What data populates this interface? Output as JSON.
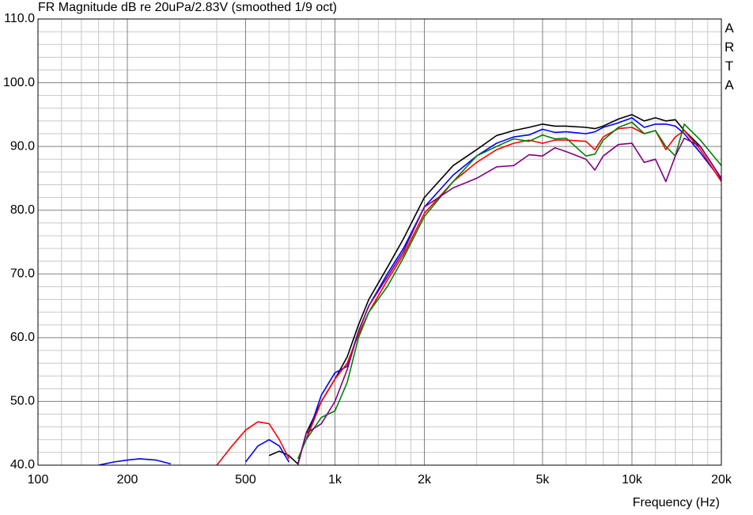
{
  "chart_data": {
    "type": "line",
    "title": "FR Magnitude dB re 20uPa/2.83V (smoothed 1/9 oct)",
    "x_label": "Frequency (Hz)",
    "watermark": "ARTA",
    "xscale": "log",
    "grid": true,
    "xlim": [
      100,
      20000
    ],
    "xticks": [
      100,
      200,
      500,
      {
        "value": 1000,
        "label": "1k"
      },
      {
        "value": 2000,
        "label": "2k"
      },
      {
        "value": 5000,
        "label": "5k"
      },
      {
        "value": 10000,
        "label": "10k"
      },
      {
        "value": 20000,
        "label": "20k"
      }
    ],
    "xminorticks": [
      120,
      140,
      160,
      180,
      300,
      400,
      600,
      700,
      800,
      900,
      1200,
      1400,
      1600,
      1800,
      3000,
      4000,
      6000,
      7000,
      8000,
      9000,
      12000,
      14000,
      16000,
      18000
    ],
    "ylim": [
      40,
      110
    ],
    "yticks": [
      {
        "value": 40,
        "label": "40.0"
      },
      {
        "value": 50,
        "label": "50.0"
      },
      {
        "value": 60,
        "label": "60.0"
      },
      {
        "value": 70,
        "label": "70.0"
      },
      {
        "value": 80,
        "label": "80.0"
      },
      {
        "value": 90,
        "label": "90.0"
      },
      {
        "value": 100,
        "label": "100.0"
      },
      {
        "value": 110,
        "label": "110.0"
      }
    ],
    "yminorticks": [
      42,
      44,
      46,
      48,
      52,
      54,
      56,
      58,
      62,
      64,
      66,
      68,
      72,
      74,
      76,
      78,
      82,
      84,
      86,
      88,
      92,
      94,
      96,
      98,
      102,
      104,
      106,
      108
    ],
    "x": [
      150,
      160,
      180,
      200,
      220,
      250,
      280,
      300,
      400,
      450,
      500,
      550,
      600,
      650,
      700,
      750,
      800,
      900,
      1000,
      1100,
      1200,
      1300,
      1500,
      1700,
      2000,
      2500,
      3000,
      3500,
      4000,
      4500,
      5000,
      5500,
      6000,
      7000,
      7500,
      8000,
      9000,
      10000,
      11000,
      12000,
      13000,
      14000,
      15000,
      17000,
      20000
    ],
    "series": [
      {
        "color": "#000000",
        "values": [
          null,
          null,
          null,
          null,
          null,
          null,
          null,
          null,
          null,
          null,
          null,
          null,
          41.5,
          42.2,
          41.5,
          40.2,
          45,
          50,
          53.5,
          57,
          62,
          66,
          71,
          75.5,
          82,
          87,
          89.5,
          91.7,
          92.5,
          93,
          93.5,
          93.2,
          93.2,
          93,
          92.8,
          93.2,
          94.3,
          95,
          94,
          94.5,
          94,
          94.2,
          92.5,
          90,
          85
        ]
      },
      {
        "color": "#0000ff",
        "values": [
          null,
          40,
          40.5,
          40.8,
          41,
          40.8,
          40.2,
          null,
          null,
          null,
          40.5,
          43,
          44,
          43,
          40.5,
          null,
          44,
          51,
          54.5,
          55.5,
          61,
          65,
          70,
          74,
          80.5,
          85.5,
          88.5,
          90.5,
          91.5,
          91.8,
          92.7,
          92.2,
          92.3,
          92,
          92.3,
          93,
          93.7,
          94.5,
          93,
          93.5,
          93.5,
          93.2,
          92,
          89,
          84.7
        ]
      },
      {
        "color": "#ff0000",
        "values": [
          null,
          null,
          null,
          null,
          null,
          null,
          null,
          null,
          40,
          43,
          45.5,
          46.8,
          46.5,
          44,
          41,
          null,
          44,
          50,
          53.5,
          56,
          60.5,
          64,
          69,
          73,
          79.5,
          84.5,
          87.5,
          89.5,
          90.5,
          91,
          90.5,
          91,
          91,
          90.8,
          89.5,
          91.5,
          92.8,
          93,
          92,
          92.5,
          89.5,
          91.5,
          92.5,
          89.5,
          84.5
        ]
      },
      {
        "color": "#008000",
        "values": [
          null,
          null,
          null,
          null,
          null,
          null,
          null,
          null,
          null,
          null,
          null,
          null,
          null,
          null,
          null,
          41,
          44,
          47.5,
          48.5,
          53,
          60,
          64,
          68,
          72.5,
          79,
          84.5,
          88.5,
          90,
          91.2,
          90.8,
          91.8,
          91.2,
          91.3,
          88.5,
          88.8,
          91,
          93,
          93.8,
          92,
          92.5,
          90,
          88.5,
          93.5,
          91,
          87
        ]
      },
      {
        "color": "#800080",
        "values": [
          null,
          null,
          null,
          null,
          null,
          null,
          null,
          null,
          null,
          null,
          null,
          null,
          null,
          null,
          null,
          40,
          45,
          46.5,
          50,
          55,
          61,
          65,
          69.5,
          73.5,
          80.5,
          83.5,
          85,
          86.8,
          87,
          88.7,
          88.5,
          89.8,
          89.2,
          88,
          86.3,
          88.5,
          90.3,
          90.5,
          87.5,
          88,
          84.5,
          88.5,
          91.3,
          90,
          85
        ]
      }
    ]
  }
}
